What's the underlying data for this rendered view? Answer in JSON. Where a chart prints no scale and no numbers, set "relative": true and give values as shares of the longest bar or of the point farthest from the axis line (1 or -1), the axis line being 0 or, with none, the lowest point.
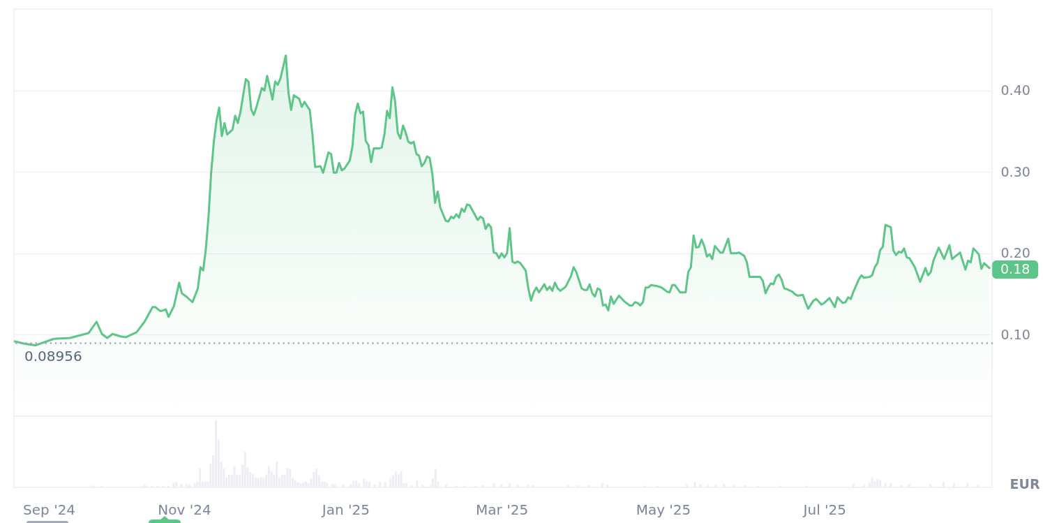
{
  "chart_data": [
    {
      "type": "area",
      "color": "#5dc587",
      "ylabel": "EUR",
      "grid": "y",
      "tick_labels": "y",
      "xlim": [
        "2024-08-30",
        "2025-09-01"
      ],
      "ylim": [
        0,
        0.5
      ],
      "yticks": [
        {
          "value": 0.1,
          "label": "0.10"
        },
        {
          "value": 0.2,
          "label": "0.20"
        },
        {
          "value": 0.3,
          "label": "0.30"
        },
        {
          "value": 0.4,
          "label": "0.40"
        }
      ],
      "ref_lines": [
        {
          "axis": "y",
          "value": 0.08956,
          "label": "0.08956",
          "color": "#9ea3b0",
          "line_style": "dotted"
        }
      ],
      "annotations": [
        {
          "text": "0.18",
          "x": "2025-08-31",
          "y": 0.18
        }
      ],
      "x": [
        "2024-08-30",
        "2024-09-03",
        "2024-09-07",
        "2024-09-14",
        "2024-09-20",
        "2024-09-27",
        "2024-09-30",
        "2024-10-02",
        "2024-10-04",
        "2024-10-06",
        "2024-10-09",
        "2024-10-11",
        "2024-10-15",
        "2024-10-18",
        "2024-10-21",
        "2024-10-22",
        "2024-10-24",
        "2024-10-26",
        "2024-10-27",
        "2024-10-29",
        "2024-10-31",
        "2024-11-01",
        "2024-11-03",
        "2024-11-05",
        "2024-11-07",
        "2024-11-08",
        "2024-11-09",
        "2024-11-10",
        "2024-11-11",
        "2024-11-12",
        "2024-11-13",
        "2024-11-14",
        "2024-11-15",
        "2024-11-16",
        "2024-11-17",
        "2024-11-18",
        "2024-11-20",
        "2024-11-21",
        "2024-11-22",
        "2024-11-23",
        "2024-11-25",
        "2024-11-26",
        "2024-11-27",
        "2024-11-28",
        "2024-11-29",
        "2024-12-01",
        "2024-12-02",
        "2024-12-03",
        "2024-12-05",
        "2024-12-06",
        "2024-12-07",
        "2024-12-08",
        "2024-12-10",
        "2024-12-11",
        "2024-12-12",
        "2024-12-13",
        "2024-12-15",
        "2024-12-16",
        "2024-12-17",
        "2024-12-19",
        "2024-12-20",
        "2024-12-21",
        "2024-12-23",
        "2024-12-24",
        "2024-12-26",
        "2024-12-27",
        "2024-12-28",
        "2024-12-29",
        "2024-12-30",
        "2024-12-31",
        "2025-01-01",
        "2025-01-03",
        "2025-01-04",
        "2025-01-05",
        "2025-01-06",
        "2025-01-07",
        "2025-01-08",
        "2025-01-09",
        "2025-01-10",
        "2025-01-11",
        "2025-01-12",
        "2025-01-14",
        "2025-01-15",
        "2025-01-16",
        "2025-01-17",
        "2025-01-18",
        "2025-01-19",
        "2025-01-20",
        "2025-01-21",
        "2025-01-22",
        "2025-01-23",
        "2025-01-24",
        "2025-01-25",
        "2025-01-26",
        "2025-01-27",
        "2025-01-28",
        "2025-01-29",
        "2025-01-30",
        "2025-01-31",
        "2025-02-01",
        "2025-02-02",
        "2025-02-03",
        "2025-02-04",
        "2025-02-05",
        "2025-02-06",
        "2025-02-08",
        "2025-02-09",
        "2025-02-10",
        "2025-02-11",
        "2025-02-12",
        "2025-02-13",
        "2025-02-14",
        "2025-02-15",
        "2025-02-16",
        "2025-02-17",
        "2025-02-19",
        "2025-02-20",
        "2025-02-21",
        "2025-02-22",
        "2025-02-23",
        "2025-02-24",
        "2025-02-25",
        "2025-02-26",
        "2025-02-27",
        "2025-02-28",
        "2025-03-01",
        "2025-03-02",
        "2025-03-03",
        "2025-03-04",
        "2025-03-05",
        "2025-03-06",
        "2025-03-07",
        "2025-03-08",
        "2025-03-10",
        "2025-03-11",
        "2025-03-12",
        "2025-03-13",
        "2025-03-14",
        "2025-03-15",
        "2025-03-17",
        "2025-03-18",
        "2025-03-19",
        "2025-03-20",
        "2025-03-21",
        "2025-03-22",
        "2025-03-23",
        "2025-03-25",
        "2025-03-27",
        "2025-03-28",
        "2025-03-29",
        "2025-03-31",
        "2025-04-01",
        "2025-04-02",
        "2025-04-03",
        "2025-04-04",
        "2025-04-05",
        "2025-04-06",
        "2025-04-07",
        "2025-04-08",
        "2025-04-09",
        "2025-04-10",
        "2025-04-11",
        "2025-04-12",
        "2025-04-14",
        "2025-04-16",
        "2025-04-18",
        "2025-04-19",
        "2025-04-20",
        "2025-04-21",
        "2025-04-22",
        "2025-04-23",
        "2025-04-24",
        "2025-04-25",
        "2025-04-26",
        "2025-04-28",
        "2025-04-30",
        "2025-05-02",
        "2025-05-03",
        "2025-05-04",
        "2025-05-05",
        "2025-05-07",
        "2025-05-09",
        "2025-05-10",
        "2025-05-11",
        "2025-05-12",
        "2025-05-13",
        "2025-05-14",
        "2025-05-15",
        "2025-05-16",
        "2025-05-17",
        "2025-05-18",
        "2025-05-19",
        "2025-05-20",
        "2025-05-22",
        "2025-05-23",
        "2025-05-25",
        "2025-05-26",
        "2025-05-28",
        "2025-05-29",
        "2025-05-31",
        "2025-06-01",
        "2025-06-02",
        "2025-06-04",
        "2025-06-06",
        "2025-06-07",
        "2025-06-08",
        "2025-06-09",
        "2025-06-10",
        "2025-06-11",
        "2025-06-12",
        "2025-06-13",
        "2025-06-14",
        "2025-06-15",
        "2025-06-16",
        "2025-06-18",
        "2025-06-19",
        "2025-06-20",
        "2025-06-22",
        "2025-06-23",
        "2025-06-24",
        "2025-06-26",
        "2025-06-27",
        "2025-06-29",
        "2025-06-30",
        "2025-07-02",
        "2025-07-04",
        "2025-07-05",
        "2025-07-07",
        "2025-07-08",
        "2025-07-09",
        "2025-07-10",
        "2025-07-11",
        "2025-07-13",
        "2025-07-14",
        "2025-07-15",
        "2025-07-17",
        "2025-07-18",
        "2025-07-19",
        "2025-07-20",
        "2025-07-21",
        "2025-07-22",
        "2025-07-23",
        "2025-07-25",
        "2025-07-26",
        "2025-07-27",
        "2025-07-28",
        "2025-07-29",
        "2025-07-30",
        "2025-07-31",
        "2025-08-01",
        "2025-08-03",
        "2025-08-05",
        "2025-08-07",
        "2025-08-08",
        "2025-08-09",
        "2025-08-10",
        "2025-08-12",
        "2025-08-14",
        "2025-08-16",
        "2025-08-17",
        "2025-08-20",
        "2025-08-22",
        "2025-08-23",
        "2025-08-24",
        "2025-08-25",
        "2025-08-27",
        "2025-08-28",
        "2025-08-29",
        "2025-08-31"
      ],
      "values": [
        0.092,
        0.089,
        0.087,
        0.095,
        0.096,
        0.102,
        0.116,
        0.101,
        0.096,
        0.101,
        0.098,
        0.097,
        0.103,
        0.116,
        0.134,
        0.134,
        0.129,
        0.131,
        0.122,
        0.135,
        0.164,
        0.151,
        0.146,
        0.14,
        0.157,
        0.183,
        0.179,
        0.205,
        0.245,
        0.299,
        0.337,
        0.363,
        0.379,
        0.344,
        0.36,
        0.346,
        0.352,
        0.369,
        0.36,
        0.374,
        0.414,
        0.411,
        0.377,
        0.37,
        0.38,
        0.403,
        0.4,
        0.418,
        0.389,
        0.411,
        0.407,
        0.415,
        0.443,
        0.397,
        0.376,
        0.394,
        0.39,
        0.38,
        0.386,
        0.376,
        0.346,
        0.306,
        0.307,
        0.299,
        0.324,
        0.322,
        0.299,
        0.299,
        0.311,
        0.302,
        0.304,
        0.314,
        0.331,
        0.37,
        0.384,
        0.372,
        0.374,
        0.338,
        0.333,
        0.312,
        0.329,
        0.329,
        0.33,
        0.346,
        0.375,
        0.366,
        0.404,
        0.387,
        0.348,
        0.341,
        0.357,
        0.348,
        0.337,
        0.335,
        0.337,
        0.322,
        0.32,
        0.307,
        0.311,
        0.319,
        0.317,
        0.297,
        0.262,
        0.276,
        0.256,
        0.24,
        0.239,
        0.245,
        0.243,
        0.248,
        0.244,
        0.255,
        0.251,
        0.26,
        0.259,
        0.247,
        0.241,
        0.245,
        0.243,
        0.23,
        0.236,
        0.232,
        0.201,
        0.2,
        0.194,
        0.2,
        0.195,
        0.2,
        0.231,
        0.19,
        0.188,
        0.19,
        0.188,
        0.179,
        0.157,
        0.142,
        0.152,
        0.158,
        0.152,
        0.162,
        0.155,
        0.159,
        0.154,
        0.164,
        0.157,
        0.154,
        0.159,
        0.172,
        0.183,
        0.177,
        0.157,
        0.155,
        0.155,
        0.162,
        0.151,
        0.147,
        0.157,
        0.155,
        0.136,
        0.137,
        0.13,
        0.147,
        0.138,
        0.148,
        0.141,
        0.136,
        0.136,
        0.14,
        0.139,
        0.136,
        0.14,
        0.158,
        0.158,
        0.161,
        0.16,
        0.158,
        0.153,
        0.152,
        0.161,
        0.161,
        0.152,
        0.152,
        0.177,
        0.183,
        0.222,
        0.207,
        0.208,
        0.217,
        0.209,
        0.196,
        0.199,
        0.193,
        0.209,
        0.201,
        0.201,
        0.218,
        0.2,
        0.2,
        0.201,
        0.197,
        0.189,
        0.171,
        0.171,
        0.171,
        0.166,
        0.151,
        0.158,
        0.163,
        0.162,
        0.171,
        0.174,
        0.168,
        0.157,
        0.156,
        0.153,
        0.15,
        0.148,
        0.149,
        0.14,
        0.132,
        0.142,
        0.144,
        0.137,
        0.139,
        0.145,
        0.134,
        0.146,
        0.139,
        0.14,
        0.146,
        0.144,
        0.153,
        0.168,
        0.173,
        0.17,
        0.171,
        0.173,
        0.183,
        0.188,
        0.204,
        0.208,
        0.235,
        0.232,
        0.203,
        0.198,
        0.202,
        0.201,
        0.206,
        0.195,
        0.194,
        0.183,
        0.165,
        0.182,
        0.173,
        0.177,
        0.191,
        0.207,
        0.193,
        0.21,
        0.193,
        0.201,
        0.18,
        0.191,
        0.189,
        0.206,
        0.199,
        0.181,
        0.188,
        0.182
      ]
    },
    {
      "type": "bar",
      "color": "#eceef3",
      "relative": true,
      "tick_labels": "x",
      "xlim": [
        "2024-08-30",
        "2025-09-01"
      ],
      "xticks": [
        {
          "value": "2024-09-01",
          "label": "Sep '24"
        },
        {
          "value": "2024-11-01",
          "label": "Nov '24"
        },
        {
          "value": "2025-01-01",
          "label": "Jan '25"
        },
        {
          "value": "2025-03-01",
          "label": "Mar '25"
        },
        {
          "value": "2025-05-01",
          "label": "May '25"
        },
        {
          "value": "2025-07-01",
          "label": "Jul '25"
        }
      ],
      "x": [
        "2024-09-27",
        "2024-09-28",
        "2024-10-01",
        "2024-10-16",
        "2024-10-17",
        "2024-10-18",
        "2024-10-20",
        "2024-10-22",
        "2024-10-24",
        "2024-10-26",
        "2024-10-28",
        "2024-10-29",
        "2024-10-31",
        "2024-11-02",
        "2024-11-03",
        "2024-11-05",
        "2024-11-06",
        "2024-11-07",
        "2024-11-08",
        "2024-11-09",
        "2024-11-10",
        "2024-11-11",
        "2024-11-12",
        "2024-11-13",
        "2024-11-14",
        "2024-11-15",
        "2024-11-16",
        "2024-11-17",
        "2024-11-18",
        "2024-11-19",
        "2024-11-20",
        "2024-11-21",
        "2024-11-22",
        "2024-11-23",
        "2024-11-24",
        "2024-11-25",
        "2024-11-26",
        "2024-11-27",
        "2024-11-28",
        "2024-11-29",
        "2024-11-30",
        "2024-12-01",
        "2024-12-02",
        "2024-12-03",
        "2024-12-04",
        "2024-12-05",
        "2024-12-06",
        "2024-12-07",
        "2024-12-08",
        "2024-12-09",
        "2024-12-10",
        "2024-12-11",
        "2024-12-12",
        "2024-12-13",
        "2024-12-14",
        "2024-12-15",
        "2024-12-16",
        "2024-12-17",
        "2024-12-18",
        "2024-12-19",
        "2024-12-20",
        "2024-12-21",
        "2024-12-22",
        "2024-12-23",
        "2024-12-24",
        "2024-12-25",
        "2024-12-27",
        "2024-12-28",
        "2024-12-31",
        "2025-01-03",
        "2025-01-04",
        "2025-01-05",
        "2025-01-06",
        "2025-01-08",
        "2025-01-09",
        "2025-01-10",
        "2025-01-12",
        "2025-01-14",
        "2025-01-16",
        "2025-01-18",
        "2025-01-19",
        "2025-01-20",
        "2025-01-21",
        "2025-01-22",
        "2025-01-23",
        "2025-01-24",
        "2025-01-26",
        "2025-01-28",
        "2025-01-30",
        "2025-02-02",
        "2025-02-03",
        "2025-02-04",
        "2025-02-05",
        "2025-02-08",
        "2025-02-12",
        "2025-02-15",
        "2025-02-19",
        "2025-02-22",
        "2025-02-26",
        "2025-03-01",
        "2025-03-04",
        "2025-03-07",
        "2025-03-11",
        "2025-03-13",
        "2025-03-26",
        "2025-03-30",
        "2025-04-03",
        "2025-04-08",
        "2025-04-10",
        "2025-04-24",
        "2025-04-29",
        "2025-05-10",
        "2025-05-13",
        "2025-05-15",
        "2025-05-18",
        "2025-05-21",
        "2025-05-24",
        "2025-05-28",
        "2025-06-01",
        "2025-06-06",
        "2025-06-14",
        "2025-06-24",
        "2025-07-12",
        "2025-07-16",
        "2025-07-18",
        "2025-07-19",
        "2025-07-20",
        "2025-07-21",
        "2025-07-22",
        "2025-07-24",
        "2025-07-26",
        "2025-07-30",
        "2025-08-02",
        "2025-08-10",
        "2025-08-15",
        "2025-08-19",
        "2025-08-24",
        "2025-08-28"
      ],
      "values": [
        0.025,
        0.025,
        0.02,
        0.02,
        0.04,
        0.025,
        0.02,
        0.02,
        0.02,
        0.02,
        0.07,
        0.08,
        0.05,
        0.05,
        0.04,
        0.06,
        0.09,
        0.28,
        0.085,
        0.085,
        0.085,
        0.35,
        0.48,
        1,
        0.71,
        0.38,
        0.28,
        0.15,
        0.19,
        0.19,
        0.32,
        0.19,
        0.19,
        0.34,
        0.53,
        0.3,
        0.23,
        0.2,
        0.15,
        0.14,
        0.15,
        0.14,
        0.19,
        0.32,
        0.24,
        0.19,
        0.38,
        0.15,
        0.19,
        0.19,
        0.29,
        0.28,
        0.14,
        0.11,
        0.075,
        0.06,
        0.075,
        0.085,
        0.065,
        0.13,
        0.23,
        0.28,
        0.18,
        0.085,
        0.085,
        0.07,
        0.05,
        0.05,
        0.045,
        0.05,
        0.1,
        0.1,
        0.065,
        0.13,
        0.09,
        0.085,
        0.04,
        0.085,
        0.075,
        0.14,
        0.18,
        0.24,
        0.2,
        0.24,
        0.065,
        0.065,
        0.03,
        0.1,
        0.035,
        0.035,
        0.13,
        0.28,
        0.085,
        0.04,
        0.025,
        0.025,
        0.02,
        0.04,
        0.06,
        0.05,
        0.06,
        0.04,
        0.04,
        0.04,
        0.03,
        0.03,
        0.03,
        0.06,
        0.04,
        0.025,
        0.025,
        0.04,
        0.075,
        0.05,
        0.04,
        0.04,
        0.05,
        0.03,
        0.04,
        0.025,
        0.025,
        0.025,
        0.05,
        0.04,
        0.07,
        0.14,
        0.09,
        0.12,
        0.11,
        0.07,
        0.06,
        0.04,
        0.05,
        0.05,
        0.08,
        0.06,
        0.07,
        0.04
      ]
    }
  ]
}
